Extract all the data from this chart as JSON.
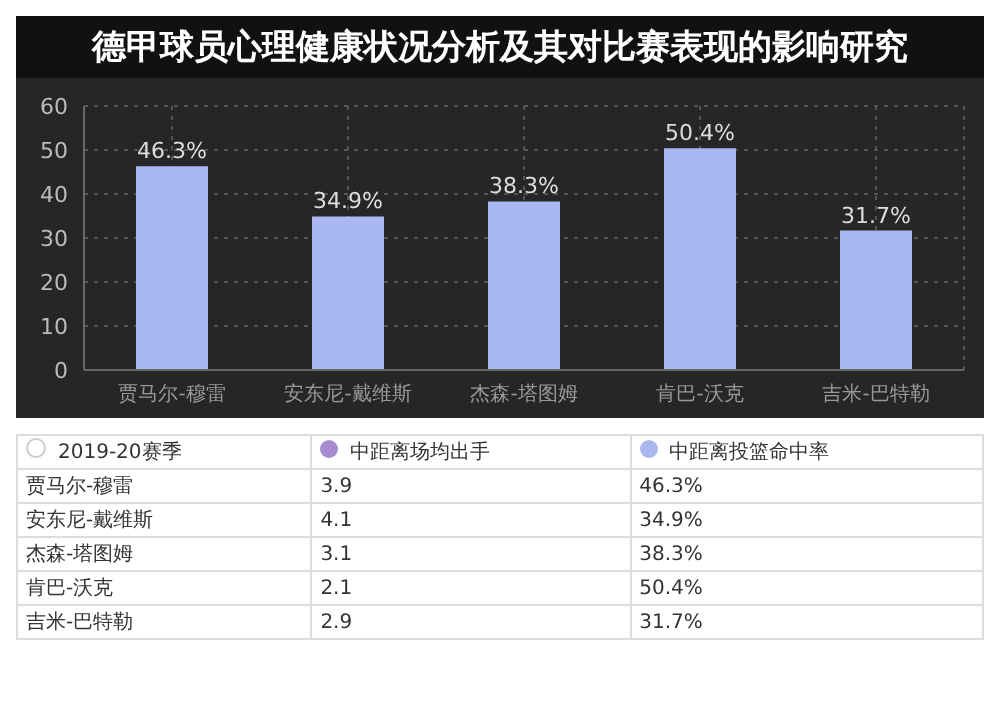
{
  "chart_data": [
    {
      "type": "bar",
      "title": "德甲球员心理健康状况分析及其对比赛表现的影响研究",
      "categories": [
        "贾马尔-穆雷",
        "安东尼-戴维斯",
        "杰森-塔图姆",
        "肯巴-沃克",
        "吉米-巴特勒"
      ],
      "values": [
        46.3,
        34.9,
        38.3,
        50.4,
        31.7
      ],
      "value_labels": [
        "46.3%",
        "34.9%",
        "38.3%",
        "50.4%",
        "31.7%"
      ],
      "color": "#a9b8f0",
      "ylim": [
        0,
        60
      ],
      "yticks": [
        0,
        10,
        20,
        30,
        40,
        50,
        60
      ],
      "grid": true
    },
    {
      "type": "other",
      "legend_title": "2019-20赛季",
      "data_labels": true,
      "categories": [
        "贾马尔-穆雷",
        "安东尼-戴维斯",
        "杰森-塔图姆",
        "肯巴-沃克",
        "吉米-巴特勒"
      ],
      "series": [
        {
          "name": "中距离场均出手",
          "color": "#a98bd0",
          "values": [
            3.9,
            4.1,
            3.1,
            2.1,
            2.9
          ]
        },
        {
          "name": "中距离投篮命中率",
          "color": "#aab8f0",
          "values": [
            46.3,
            34.9,
            38.3,
            50.4,
            31.7
          ],
          "value_labels": [
            "46.3%",
            "34.9%",
            "38.3%",
            "50.4%",
            "31.7%"
          ]
        }
      ]
    }
  ]
}
